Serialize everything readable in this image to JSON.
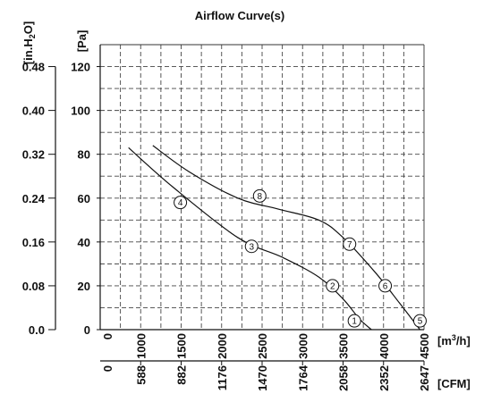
{
  "chart_data": {
    "type": "line",
    "title": "Airflow Curve(s)",
    "y_units": {
      "pa": "[Pa]",
      "inh2o_prefix": "[in.H",
      "inh2o_sub": "2",
      "inh2o_suffix": "O]"
    },
    "x_units": {
      "m3h_prefix": "[m",
      "m3h_sup": "3",
      "m3h_suffix": "/h]",
      "cfm": "[CFM]"
    },
    "pa_ticks": [
      "0",
      "20",
      "40",
      "60",
      "80",
      "100",
      "120"
    ],
    "inh2o_ticks": [
      "0.0",
      "0.08",
      "0.16",
      "0.24",
      "0.32",
      "0.40",
      "0.48"
    ],
    "m3h_ticks": [
      "0",
      "1000",
      "1500",
      "2000",
      "2500",
      "3000",
      "3500",
      "4000",
      "4500"
    ],
    "cfm_ticks": [
      "0",
      "588",
      "882",
      "1176",
      "1470",
      "1764",
      "2058",
      "2352",
      "2647"
    ],
    "xlim": [
      500,
      4500
    ],
    "ylim": [
      0,
      130
    ],
    "grid": true,
    "series": [
      {
        "x": [
          850,
          1400,
          2200,
          2750,
          3200,
          3500,
          3700,
          3850
        ],
        "y": [
          83,
          65,
          42,
          33,
          24,
          14,
          5,
          0
        ],
        "markers": [
          {
            "label": "4",
            "x": 1490,
            "y": 58
          },
          {
            "label": "3",
            "x": 2370,
            "y": 38
          },
          {
            "label": "2",
            "x": 3370,
            "y": 20
          },
          {
            "label": "1",
            "x": 3640,
            "y": 4
          }
        ]
      },
      {
        "x": [
          1150,
          1600,
          2200,
          2700,
          3200,
          3500,
          3900,
          4200,
          4450
        ],
        "y": [
          84,
          72,
          60,
          55,
          50,
          42,
          26,
          12,
          0
        ],
        "markers": [
          {
            "label": "8",
            "x": 2470,
            "y": 61
          },
          {
            "label": "7",
            "x": 3580,
            "y": 39
          },
          {
            "label": "6",
            "x": 4020,
            "y": 20
          },
          {
            "label": "5",
            "x": 4450,
            "y": 4
          }
        ]
      }
    ]
  }
}
